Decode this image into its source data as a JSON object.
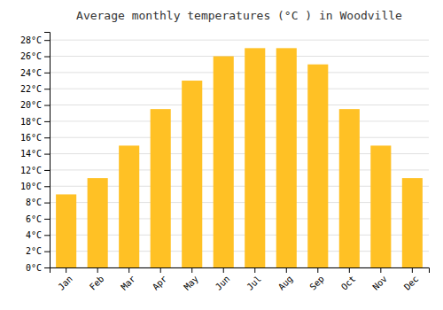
{
  "chart_data": {
    "type": "bar",
    "title": "Average monthly temperatures (°C ) in Woodville",
    "categories": [
      "Jan",
      "Feb",
      "Mar",
      "Apr",
      "May",
      "Jun",
      "Jul",
      "Aug",
      "Sep",
      "Oct",
      "Nov",
      "Dec"
    ],
    "values": [
      9,
      11,
      15,
      19.5,
      23,
      26,
      27,
      27,
      25,
      19.5,
      15,
      11
    ],
    "color": "#FFC125",
    "ylim": [
      0,
      29
    ],
    "yticks": [
      {
        "value": 0,
        "label": "0°C"
      },
      {
        "value": 2,
        "label": "2°C"
      },
      {
        "value": 4,
        "label": "4°C"
      },
      {
        "value": 6,
        "label": "6°C"
      },
      {
        "value": 8,
        "label": "8°C"
      },
      {
        "value": 10,
        "label": "10°C"
      },
      {
        "value": 12,
        "label": "12°C"
      },
      {
        "value": 14,
        "label": "14°C"
      },
      {
        "value": 16,
        "label": "16°C"
      },
      {
        "value": 18,
        "label": "18°C"
      },
      {
        "value": 20,
        "label": "20°C"
      },
      {
        "value": 22,
        "label": "22°C"
      },
      {
        "value": 24,
        "label": "24°C"
      },
      {
        "value": 26,
        "label": "26°C"
      },
      {
        "value": 28,
        "label": "28°C"
      }
    ],
    "grid": true
  }
}
